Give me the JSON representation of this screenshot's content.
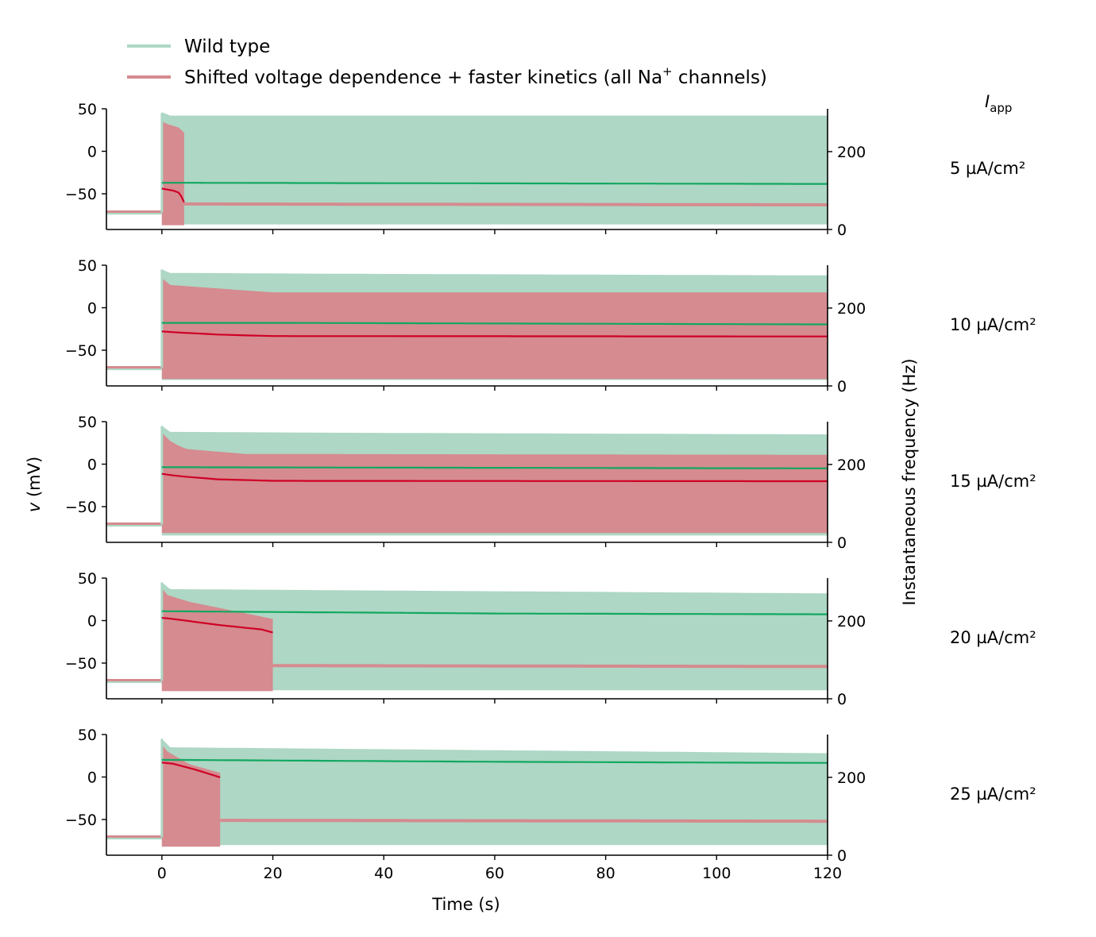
{
  "chart_data": {
    "type": "line",
    "legend": {
      "placement": "top-left",
      "entries": [
        {
          "label": "Wild type",
          "color": "#aed7c5"
        },
        {
          "label_prefix": "Shifted voltage dependence + faster kinetics (all Na",
          "label_sup": "+",
          "label_suffix": " channels)",
          "color": "#d58b8f"
        }
      ]
    },
    "xlabel": "Time (s)",
    "xlim": [
      -10,
      120
    ],
    "xticks": [
      0,
      20,
      40,
      60,
      80,
      100,
      120
    ],
    "ylabel_italic": "v",
    "ylabel_rest": " (mV)",
    "ylim_left": [
      -92,
      50
    ],
    "yticks_left": [
      50,
      0,
      -50
    ],
    "ylabel_right": "Instantaneous frequency (Hz)",
    "ylim_right": [
      0,
      310
    ],
    "yticks_right": [
      200,
      0
    ],
    "panel_header": {
      "italic": "I",
      "subscript": "app"
    },
    "colors": {
      "wt_fill": "#aed7c5",
      "mut_fill": "#d58b8f",
      "wt_freq": "#12a860",
      "mut_freq": "#cf0026"
    },
    "panels": [
      {
        "label": "5 µA/cm²",
        "rest_v": -72,
        "wt_envelope": {
          "top_t": [
            0,
            1,
            120
          ],
          "top_v": [
            46,
            42,
            42
          ],
          "bottom_v": -86
        },
        "wt_freq": {
          "t": [
            0,
            120
          ],
          "hz": [
            120,
            117
          ]
        },
        "mut_envelope": {
          "top_t": [
            0,
            1,
            3,
            4
          ],
          "top_v": [
            35,
            32,
            28,
            22
          ],
          "bottom_v": -87,
          "end_t": 4
        },
        "mut_freq": {
          "t": [
            0,
            2,
            3,
            3.5,
            4
          ],
          "hz": [
            105,
            100,
            95,
            85,
            70
          ]
        },
        "mut_after": {
          "t": [
            4,
            120
          ],
          "v": [
            -62,
            -63
          ]
        }
      },
      {
        "label": "10 µA/cm²",
        "rest_v": -71,
        "wt_envelope": {
          "top_t": [
            0,
            1,
            30,
            120
          ],
          "top_v": [
            45,
            41,
            40,
            38
          ],
          "bottom_v": -85
        },
        "wt_freq": {
          "t": [
            0,
            20,
            120
          ],
          "hz": [
            162,
            162,
            158
          ]
        },
        "mut_envelope": {
          "top_t": [
            0,
            1,
            20,
            120
          ],
          "top_v": [
            35,
            27,
            18,
            18
          ],
          "bottom_v": -84,
          "end_t": 120
        },
        "mut_freq": {
          "t": [
            0,
            2,
            10,
            20,
            120
          ],
          "hz": [
            140,
            138,
            132,
            128,
            127
          ]
        }
      },
      {
        "label": "15 µA/cm²",
        "rest_v": -71,
        "wt_envelope": {
          "top_t": [
            0,
            1,
            30,
            120
          ],
          "top_v": [
            45,
            38,
            37,
            35
          ],
          "bottom_v": -84
        },
        "wt_freq": {
          "t": [
            0,
            120
          ],
          "hz": [
            193,
            190
          ]
        },
        "mut_envelope": {
          "top_t": [
            0,
            1,
            4,
            15,
            120
          ],
          "top_v": [
            37,
            29,
            18,
            12,
            11
          ],
          "bottom_v": -81,
          "end_t": 120
        },
        "mut_freq": {
          "t": [
            0,
            3,
            10,
            20,
            120
          ],
          "hz": [
            176,
            170,
            162,
            158,
            157
          ]
        }
      },
      {
        "label": "20 µA/cm²",
        "rest_v": -71,
        "wt_envelope": {
          "top_t": [
            0,
            1,
            120
          ],
          "top_v": [
            45,
            37,
            32
          ],
          "bottom_v": -82
        },
        "wt_freq": {
          "t": [
            0,
            60,
            120
          ],
          "hz": [
            225,
            219,
            217
          ]
        },
        "mut_envelope": {
          "top_t": [
            0,
            1,
            5,
            20
          ],
          "top_v": [
            38,
            30,
            22,
            2
          ],
          "bottom_v": -83,
          "end_t": 20
        },
        "mut_freq": {
          "t": [
            0,
            2,
            10,
            18,
            20
          ],
          "hz": [
            208,
            205,
            190,
            178,
            170
          ]
        },
        "mut_after": {
          "t": [
            20,
            120
          ],
          "v": [
            -53,
            -54
          ]
        }
      },
      {
        "label": "25 µA/cm²",
        "rest_v": -71,
        "wt_envelope": {
          "top_t": [
            0,
            1,
            120
          ],
          "top_v": [
            45,
            35,
            28
          ],
          "bottom_v": -80
        },
        "wt_freq": {
          "t": [
            0,
            60,
            120
          ],
          "hz": [
            245,
            240,
            237
          ]
        },
        "mut_envelope": {
          "top_t": [
            0,
            1,
            5,
            10.5
          ],
          "top_v": [
            38,
            30,
            15,
            5
          ],
          "bottom_v": -82,
          "end_t": 10.5
        },
        "mut_freq": {
          "t": [
            0,
            2,
            6,
            10.5
          ],
          "hz": [
            238,
            235,
            220,
            200
          ]
        },
        "mut_after": {
          "t": [
            10.5,
            120
          ],
          "v": [
            -51,
            -52
          ]
        }
      }
    ]
  }
}
